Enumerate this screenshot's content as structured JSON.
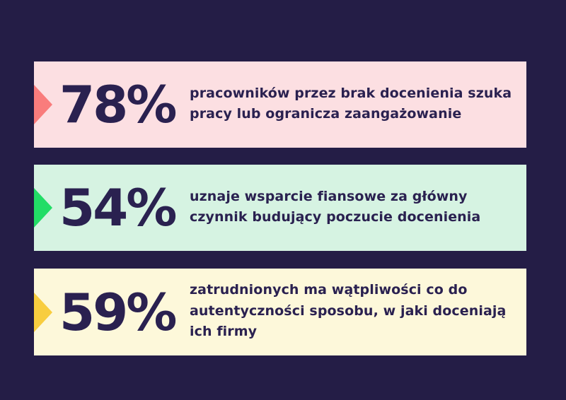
{
  "theme": {
    "background_color": "#241d46",
    "text_color": "#2a2150"
  },
  "stats": [
    {
      "value": "78%",
      "description_lines": [
        "pracowników przez brak docenienia szuka",
        "pracy lub ogranicza zaangażowanie"
      ],
      "bar_color": "#fcdfe2",
      "arrow_color": "#f97c7c"
    },
    {
      "value": "54%",
      "description_lines": [
        "uznaje wsparcie fiansowe za główny",
        "czynnik budujący poczucie docenienia"
      ],
      "bar_color": "#d6f3e2",
      "arrow_color": "#22dd66"
    },
    {
      "value": "59%",
      "description_lines": [
        "zatrudnionych ma wątpliwości co do",
        "autentyczności sposobu, w jaki doceniają",
        "ich firmy"
      ],
      "bar_color": "#fdf8da",
      "arrow_color": "#f8cd3f"
    }
  ],
  "chart_data": {
    "type": "bar",
    "categories": [
      "pracowników przez brak docenienia szuka pracy lub ogranicza zaangażowanie",
      "uznaje wsparcie fiansowe za główny czynnik budujący poczucie docenienia",
      "zatrudnionych ma wątpliwości co do autentyczności sposobu, w jaki doceniają ich firmy"
    ],
    "values": [
      78,
      54,
      59
    ],
    "value_labels": [
      "78%",
      "54%",
      "59%"
    ],
    "title": "",
    "xlabel": "",
    "ylabel": "",
    "legend": false,
    "grid": false,
    "orientation": "horizontal-stat-list",
    "bar_colors": [
      "#fcdfe2",
      "#d6f3e2",
      "#fdf8da"
    ],
    "marker_colors": [
      "#f97c7c",
      "#22dd66",
      "#f8cd3f"
    ]
  }
}
